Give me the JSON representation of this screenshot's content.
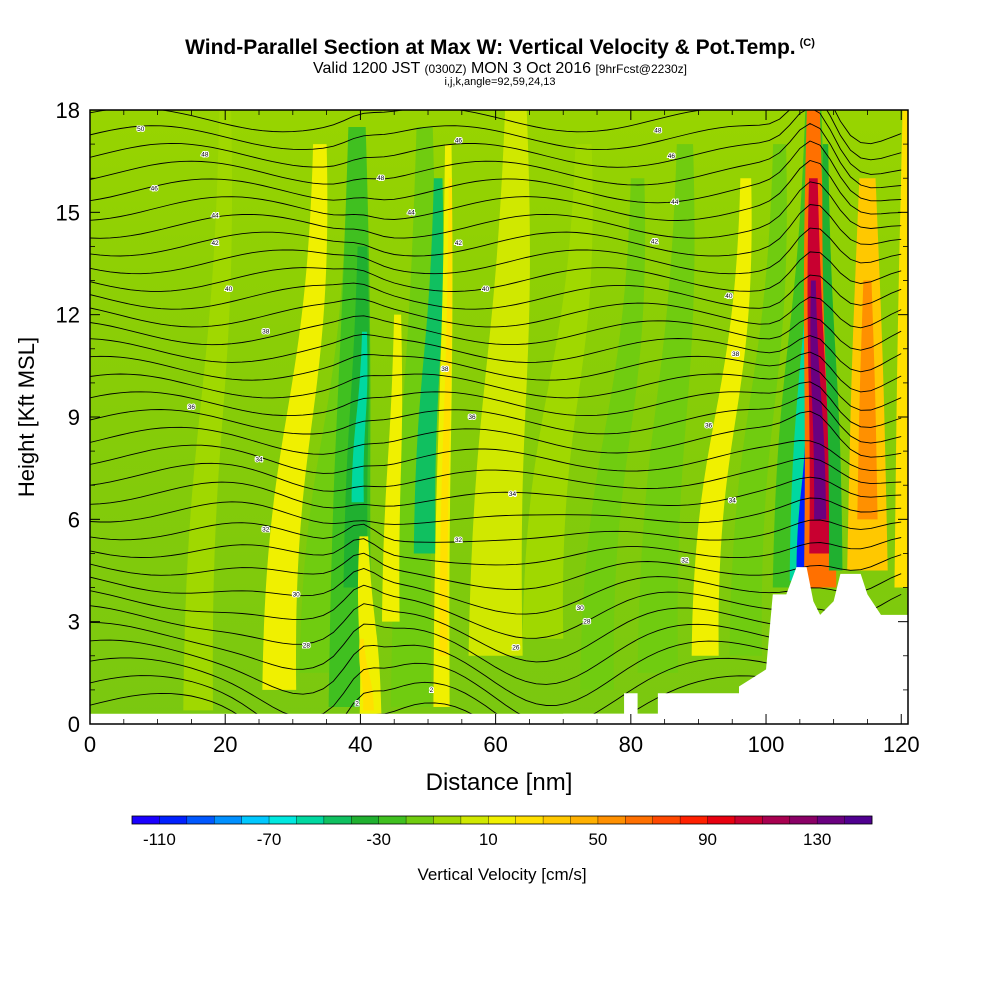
{
  "title": {
    "main": "Wind-Parallel Section at Max W: Vertical Velocity & Pot.Temp.",
    "copyright": "(C)",
    "subtitle_a": "Valid 1200 JST",
    "subtitle_b": "(0300Z)",
    "subtitle_c": "MON 3 Oct 2016",
    "subtitle_d": "[9hrFcst@2230z]",
    "info": "i,j,k,angle=92,59,24,13"
  },
  "chart_data": {
    "type": "heatmap",
    "title": "Wind-Parallel Section at Max W: Vertical Velocity & Pot.Temp.",
    "xlabel": "Distance [nm]",
    "ylabel": "Height [Kft MSL]",
    "xlim": [
      0,
      121
    ],
    "ylim": [
      0,
      18
    ],
    "x_ticks": [
      0,
      20,
      40,
      60,
      80,
      100,
      120
    ],
    "y_ticks": [
      0,
      3,
      6,
      9,
      12,
      15,
      18
    ],
    "grid": false,
    "colorbar": {
      "label": "Vertical Velocity [cm/s]",
      "tick_labels": [
        "-110",
        "-70",
        "-30",
        "10",
        "50",
        "90",
        "130"
      ],
      "tick_values": [
        -110,
        -70,
        -30,
        10,
        50,
        90,
        130
      ],
      "min": -120,
      "max": 150,
      "colors": [
        "#1a00ff",
        "#0020ff",
        "#0058ff",
        "#0090ff",
        "#00c8ff",
        "#00e8e0",
        "#00d8a0",
        "#10c060",
        "#20b030",
        "#40c020",
        "#70cc10",
        "#a0d800",
        "#d0e800",
        "#f0f000",
        "#ffe000",
        "#ffc800",
        "#ffb000",
        "#ff9000",
        "#ff7000",
        "#ff4800",
        "#ff2000",
        "#e80010",
        "#c80030",
        "#a80050",
        "#8a0066",
        "#6a0080",
        "#500090"
      ]
    },
    "updraft_columns": [
      {
        "x": 40.5,
        "w_max": 20
      },
      {
        "x": 52,
        "w_max": 25
      },
      {
        "x": 108,
        "w_max": 140
      },
      {
        "x": 114,
        "w_max": 50
      }
    ],
    "downdraft_columns": [
      {
        "x": 39,
        "w_min": -50
      },
      {
        "x": 49,
        "w_min": -45
      },
      {
        "x": 105,
        "w_min": -110
      }
    ],
    "terrain_height_kft": [
      [
        70,
        0.3
      ],
      [
        79,
        0.3
      ],
      [
        79,
        0.9
      ],
      [
        81,
        0.9
      ],
      [
        81,
        0.3
      ],
      [
        84,
        0.3
      ],
      [
        84,
        0.9
      ],
      [
        96,
        0.9
      ],
      [
        96,
        1.1
      ],
      [
        100,
        1.6
      ],
      [
        101,
        3.8
      ],
      [
        103,
        3.8
      ],
      [
        104.5,
        4.6
      ],
      [
        106,
        4.6
      ],
      [
        107,
        3.6
      ],
      [
        108,
        3.2
      ],
      [
        110,
        3.6
      ],
      [
        111,
        4.4
      ],
      [
        114,
        4.4
      ],
      [
        115,
        3.8
      ],
      [
        117,
        3.2
      ],
      [
        121,
        3.2
      ]
    ],
    "theta_contours": {
      "labels": [
        {
          "text": "50",
          "x": 7.5,
          "y": 17.45
        },
        {
          "text": "48",
          "x": 17,
          "y": 16.7
        },
        {
          "text": "46",
          "x": 9.5,
          "y": 15.7
        },
        {
          "text": "44",
          "x": 18.5,
          "y": 14.9
        },
        {
          "text": "42",
          "x": 18.5,
          "y": 14.1
        },
        {
          "text": "40",
          "x": 20.5,
          "y": 12.75
        },
        {
          "text": "38",
          "x": 26,
          "y": 11.5
        },
        {
          "text": "36",
          "x": 15,
          "y": 9.3
        },
        {
          "text": "34",
          "x": 25,
          "y": 7.75
        },
        {
          "text": "32",
          "x": 26,
          "y": 5.7
        },
        {
          "text": "30",
          "x": 30.5,
          "y": 3.8
        },
        {
          "text": "28",
          "x": 32,
          "y": 2.3
        },
        {
          "text": "2",
          "x": 39.5,
          "y": 0.6
        },
        {
          "text": "48",
          "x": 43,
          "y": 16.0
        },
        {
          "text": "46",
          "x": 54.5,
          "y": 17.1
        },
        {
          "text": "44",
          "x": 47.5,
          "y": 15.0
        },
        {
          "text": "42",
          "x": 54.5,
          "y": 14.1
        },
        {
          "text": "40",
          "x": 58.5,
          "y": 12.75
        },
        {
          "text": "38",
          "x": 52.5,
          "y": 10.4
        },
        {
          "text": "36",
          "x": 56.5,
          "y": 9.0
        },
        {
          "text": "34",
          "x": 62.5,
          "y": 6.75
        },
        {
          "text": "32",
          "x": 54.5,
          "y": 5.4
        },
        {
          "text": "30",
          "x": 72.5,
          "y": 3.4
        },
        {
          "text": "28",
          "x": 73.5,
          "y": 3.0
        },
        {
          "text": "26",
          "x": 63,
          "y": 2.25
        },
        {
          "text": "2",
          "x": 50.5,
          "y": 1.0
        },
        {
          "text": "48",
          "x": 84,
          "y": 17.4
        },
        {
          "text": "46",
          "x": 86,
          "y": 16.65
        },
        {
          "text": "44",
          "x": 86.5,
          "y": 15.3
        },
        {
          "text": "42",
          "x": 83.5,
          "y": 14.15
        },
        {
          "text": "40",
          "x": 94.5,
          "y": 12.55
        },
        {
          "text": "38",
          "x": 95.5,
          "y": 10.85
        },
        {
          "text": "36",
          "x": 91.5,
          "y": 8.75
        },
        {
          "text": "34",
          "x": 95,
          "y": 6.55
        },
        {
          "text": "32",
          "x": 88,
          "y": 4.8
        }
      ]
    }
  }
}
